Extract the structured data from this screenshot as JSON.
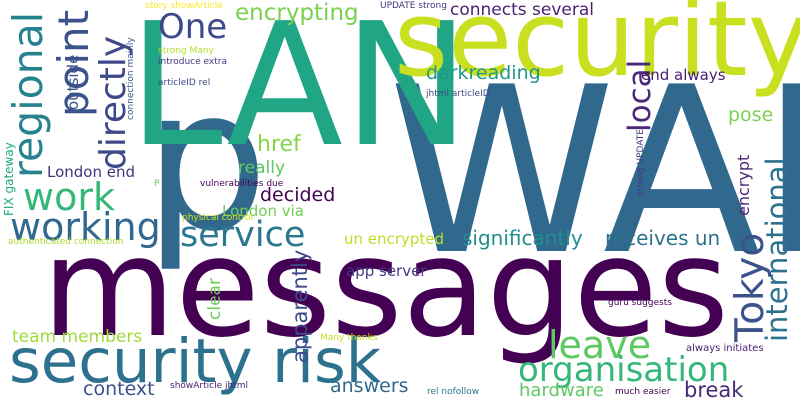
{
  "cloud": {
    "words": [
      {
        "text": "messages",
        "color": "#440154"
      },
      {
        "text": "WAN",
        "color": "#31688e"
      },
      {
        "text": "p",
        "color": "#31688e"
      },
      {
        "text": "LAN",
        "color": "#21a685"
      },
      {
        "text": "security",
        "color": "#c8e020"
      },
      {
        "text": "security risk",
        "color": "#2c728e"
      },
      {
        "text": "point",
        "color": "#3b528b"
      },
      {
        "text": "regional",
        "color": "#26828e"
      },
      {
        "text": "directly",
        "color": "#3e4989"
      },
      {
        "text": "work",
        "color": "#35b779"
      },
      {
        "text": "working",
        "color": "#31688e"
      },
      {
        "text": "One",
        "color": "#3e4989"
      },
      {
        "text": "encrypting",
        "color": "#7ad151"
      },
      {
        "text": "connects several",
        "color": "#481f70"
      },
      {
        "text": "pose",
        "color": "#7ad151"
      },
      {
        "text": "darkreading",
        "color": "#1f988b"
      },
      {
        "text": "local",
        "color": "#482878"
      },
      {
        "text": "international",
        "color": "#2c728e"
      },
      {
        "text": "end always",
        "color": "#481f70"
      },
      {
        "text": "encrypt",
        "color": "#482475"
      },
      {
        "text": "href",
        "color": "#86d549"
      },
      {
        "text": "really",
        "color": "#5ec962"
      },
      {
        "text": "decided",
        "color": "#440154"
      },
      {
        "text": "London end",
        "color": "#46337e"
      },
      {
        "text": "London via",
        "color": "#6ece58"
      },
      {
        "text": "service",
        "color": "#2a788e"
      },
      {
        "text": "significantly",
        "color": "#218f8d"
      },
      {
        "text": "receives un",
        "color": "#2c728e"
      },
      {
        "text": "un encrypted",
        "color": "#bddf26"
      },
      {
        "text": "Tokyo",
        "color": "#3b528b"
      },
      {
        "text": "leave",
        "color": "#5ec962"
      },
      {
        "text": "organisation",
        "color": "#35b779"
      },
      {
        "text": "apparently",
        "color": "#3e4989"
      },
      {
        "text": "clear",
        "color": "#6ece58"
      },
      {
        "text": "team members",
        "color": "#a0da39"
      },
      {
        "text": "app server",
        "color": "#443983"
      },
      {
        "text": "context",
        "color": "#3b528b"
      },
      {
        "text": "answers",
        "color": "#31688e"
      },
      {
        "text": "hardware",
        "color": "#5ec962"
      },
      {
        "text": "break",
        "color": "#482878"
      },
      {
        "text": "outside",
        "color": "#3b528b"
      },
      {
        "text": "FIX gateway",
        "color": "#22a884"
      },
      {
        "text": "authenticated connection",
        "color": "#addc30"
      },
      {
        "text": "vulnerabilities due",
        "color": "#440154"
      },
      {
        "text": "physical control",
        "color": "#d0e11c"
      },
      {
        "text": "strong Many",
        "color": "#b5de2b"
      },
      {
        "text": "introduce extra",
        "color": "#443983"
      },
      {
        "text": "articleID rel",
        "color": "#3e4989"
      },
      {
        "text": "connection mainly",
        "color": "#3b528b"
      },
      {
        "text": "story showArticle",
        "color": "#fde725"
      },
      {
        "text": "UPDATE strong",
        "color": "#46337e"
      },
      {
        "text": "jhtml articleID",
        "color": "#3e4989"
      },
      {
        "text": "strong UPDATE",
        "color": "#443983"
      },
      {
        "text": "guru suggests",
        "color": "#440154"
      },
      {
        "text": "always initiates",
        "color": "#481f70"
      },
      {
        "text": "Many thanks",
        "color": "#c8e020"
      },
      {
        "text": "showArticle jhtml",
        "color": "#482475"
      },
      {
        "text": "rel nofollow",
        "color": "#2a788e"
      },
      {
        "text": "much easier",
        "color": "#440154"
      },
      {
        "text": "P",
        "color": "#5ec962"
      }
    ]
  }
}
